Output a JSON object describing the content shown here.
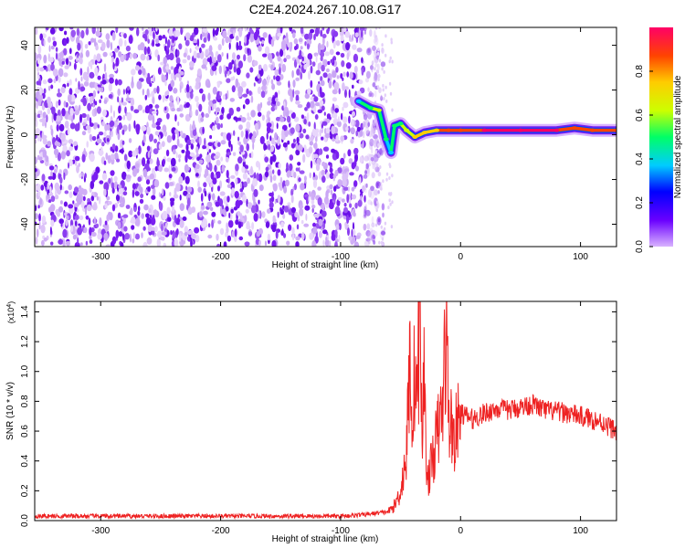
{
  "title": "C2E4.2024.267.10.08.G17",
  "colors": {
    "snr_line": "#ee2222",
    "axis": "#000000",
    "background": "#ffffff",
    "speckle_base": "#7a1ef0",
    "speckle_light": "#c9a6f5"
  },
  "chart_data": [
    {
      "type": "heatmap",
      "xlabel": "Height of straight line (km)",
      "ylabel": "Frequency (Hz)",
      "xlim": [
        -355,
        130
      ],
      "ylim": [
        -50,
        48
      ],
      "xticks": [
        -300,
        -200,
        -100,
        0,
        100
      ],
      "yticks": [
        -40,
        -20,
        0,
        20,
        40
      ],
      "colorbar": {
        "label": "Normalized spectral amplitude",
        "range": [
          0.0,
          1.0
        ],
        "ticks": [
          "0.0",
          "0.2",
          "0.4",
          "0.6",
          "0.8"
        ],
        "colormap": [
          "#d9b3ff",
          "#6a00ff",
          "#0000ff",
          "#00ccff",
          "#00ff66",
          "#ccff00",
          "#ffcc00",
          "#ff4400",
          "#ff0066"
        ]
      },
      "noise_region_x": [
        -355,
        -72
      ],
      "signal_track": [
        {
          "x": -85,
          "freq": 15,
          "amp": 0.35
        },
        {
          "x": -75,
          "freq": 12,
          "amp": 0.55
        },
        {
          "x": -68,
          "freq": 11,
          "amp": 0.6
        },
        {
          "x": -62,
          "freq": -2,
          "amp": 0.45
        },
        {
          "x": -58,
          "freq": -8,
          "amp": 0.4
        },
        {
          "x": -55,
          "freq": 4,
          "amp": 0.5
        },
        {
          "x": -50,
          "freq": 5,
          "amp": 0.55
        },
        {
          "x": -45,
          "freq": 2,
          "amp": 0.6
        },
        {
          "x": -38,
          "freq": -1,
          "amp": 0.7
        },
        {
          "x": -30,
          "freq": 1,
          "amp": 0.75
        },
        {
          "x": -20,
          "freq": 2,
          "amp": 0.8
        },
        {
          "x": -10,
          "freq": 2,
          "amp": 0.85
        },
        {
          "x": 0,
          "freq": 2,
          "amp": 0.9
        },
        {
          "x": 20,
          "freq": 2,
          "amp": 0.95
        },
        {
          "x": 50,
          "freq": 2,
          "amp": 0.95
        },
        {
          "x": 80,
          "freq": 2,
          "amp": 0.95
        },
        {
          "x": 95,
          "freq": 3,
          "amp": 0.9
        },
        {
          "x": 110,
          "freq": 2,
          "amp": 0.85
        },
        {
          "x": 130,
          "freq": 2,
          "amp": 0.85
        }
      ]
    },
    {
      "type": "line",
      "xlabel": "Height of straight line (km)",
      "ylabel": "SNR (10 * v/v)",
      "y_multiplier": "(x10^4)",
      "y_multiplier_base": "(x10",
      "y_multiplier_exp": "4",
      "y_multiplier_close": ")",
      "xlim": [
        -355,
        130
      ],
      "ylim": [
        0,
        1.47
      ],
      "xticks": [
        -300,
        -200,
        -100,
        0,
        100
      ],
      "yticks": [
        "0.0",
        "0.2",
        "0.4",
        "0.6",
        "0.8",
        "1.0",
        "1.2",
        "1.4"
      ],
      "series": [
        {
          "x": [
            -355,
            -300,
            -250,
            -200,
            -150,
            -100,
            -80,
            -60,
            -55,
            -50,
            -45,
            -42,
            -40,
            -38,
            -36,
            -34,
            -32,
            -30,
            -28,
            -25,
            -20,
            -15,
            -12,
            -10,
            -5,
            0,
            10,
            20,
            30,
            40,
            50,
            60,
            70,
            80,
            90,
            100,
            110,
            120,
            130
          ],
          "values": [
            0.03,
            0.03,
            0.03,
            0.03,
            0.03,
            0.03,
            0.04,
            0.06,
            0.1,
            0.2,
            0.45,
            1.15,
            0.6,
            1.1,
            0.8,
            1.47,
            0.5,
            1.1,
            0.25,
            0.35,
            0.55,
            0.75,
            1.33,
            0.7,
            0.55,
            0.72,
            0.68,
            0.72,
            0.75,
            0.74,
            0.76,
            0.78,
            0.74,
            0.73,
            0.72,
            0.7,
            0.68,
            0.65,
            0.6
          ]
        }
      ]
    }
  ]
}
